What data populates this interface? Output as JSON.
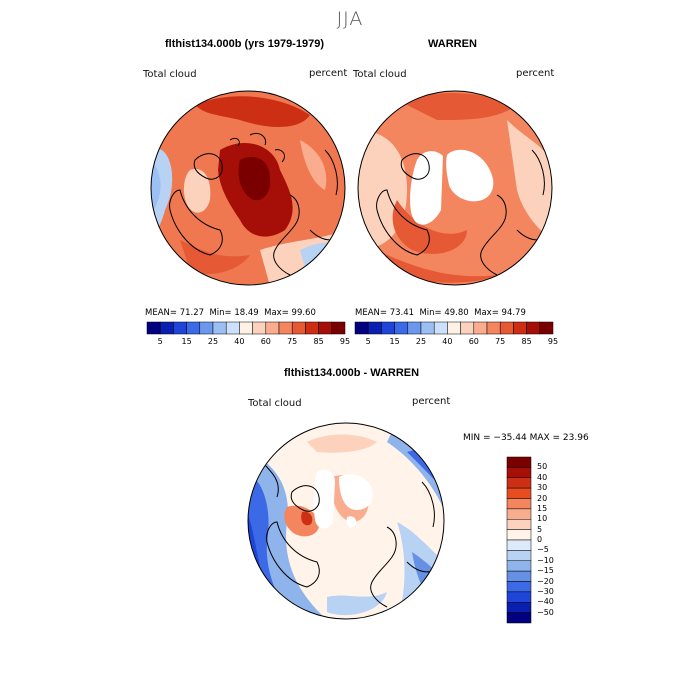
{
  "figure": {
    "season_title": "JJA",
    "panel1": {
      "title": "flthist134.000b (yrs 1979-1979)",
      "variable": "Total cloud",
      "units": "percent",
      "mean_label": "MEAN=",
      "mean": "71.27",
      "min_label": "Min=",
      "min": "18.49",
      "max_label": "Max=",
      "max": "99.60"
    },
    "panel2": {
      "title": "WARREN",
      "variable": "Total cloud",
      "units": "percent",
      "mean_label": "MEAN=",
      "mean": "73.41",
      "min_label": "Min=",
      "min": "49.80",
      "max_label": "Max=",
      "max": "94.79"
    },
    "panel3": {
      "title": "flthist134.000b - WARREN",
      "variable": "Total cloud",
      "units": "percent",
      "minmax_text": "MIN = −35.44 MAX =  23.96"
    },
    "colorbar_abs": {
      "colors": [
        "#000080",
        "#0a1fb0",
        "#1f45d8",
        "#3c6ae6",
        "#6b97ee",
        "#9cc0f4",
        "#cde0fb",
        "#fff1e6",
        "#fcd2bd",
        "#f9ac8e",
        "#f3855f",
        "#e55a35",
        "#cc2f14",
        "#a50f07",
        "#7a0000"
      ],
      "tick_labels": [
        "5",
        "15",
        "25",
        "40",
        "60",
        "75",
        "85",
        "95"
      ]
    },
    "colorbar_diff": {
      "colors": [
        "#7a0000",
        "#a50f07",
        "#cc2f14",
        "#e84d20",
        "#f3855f",
        "#f9ac8e",
        "#fcd2bd",
        "#fff3ea",
        "#ddeafa",
        "#b8d2f4",
        "#8fb4ec",
        "#6690e3",
        "#3c6ae6",
        "#1f45d8",
        "#0a1fb0",
        "#000080"
      ],
      "tick_labels": [
        "50",
        "40",
        "30",
        "20",
        "15",
        "10",
        "5",
        "0",
        "−5",
        "−10",
        "−15",
        "−20",
        "−30",
        "−40",
        "−50"
      ]
    }
  }
}
